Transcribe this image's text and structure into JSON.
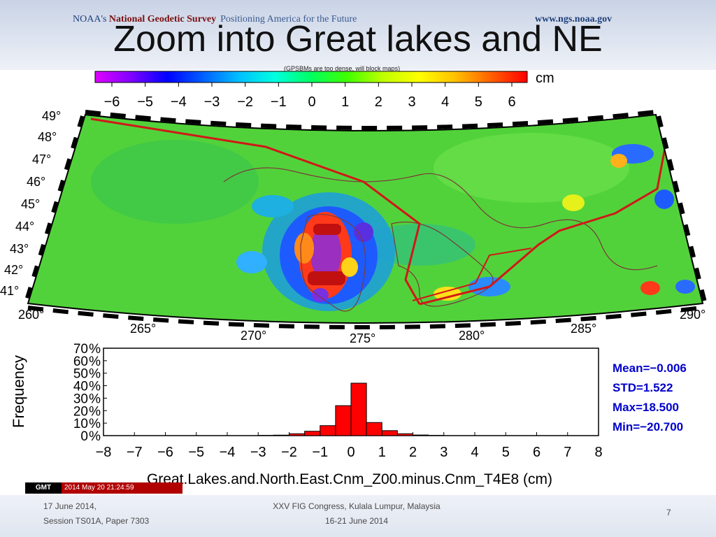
{
  "header": {
    "agency_prefix": "NOAA's ",
    "agency_name": "National Geodetic Survey",
    "motto": "Positioning America for the Future",
    "url": "www.ngs.noaa.gov"
  },
  "title": "Zoom into Great lakes and NE",
  "note": "(GPSBMs are too dense, will block maps)",
  "colorbar": {
    "unit": "cm",
    "ticks": [
      "−6",
      "−5",
      "−4",
      "−3",
      "−2",
      "−1",
      "0",
      "1",
      "2",
      "3",
      "4",
      "5",
      "6"
    ],
    "colors": [
      "#e000ff",
      "#8000ff",
      "#0000ff",
      "#0060ff",
      "#00c0ff",
      "#00ffe0",
      "#00ff60",
      "#40ff00",
      "#c0ff00",
      "#ffff00",
      "#ffc000",
      "#ff6000",
      "#ff0000"
    ]
  },
  "map": {
    "lat_labels": [
      "49°",
      "48°",
      "47°",
      "46°",
      "45°",
      "44°",
      "43°",
      "42°",
      "41°"
    ],
    "lon_labels": [
      "260°",
      "265°",
      "270°",
      "275°",
      "280°",
      "285°",
      "290°"
    ]
  },
  "chart_data": {
    "type": "bar",
    "ylabel": "Frequency",
    "xlabel": "Great.Lakes.and.North.East.Cnm_Z00.minus.Cnm_T4E8 (cm)",
    "xlim": [
      -8,
      8
    ],
    "ylim": [
      0,
      70
    ],
    "x_ticks": [
      "−8",
      "−7",
      "−6",
      "−5",
      "−4",
      "−3",
      "−2",
      "−1",
      "0",
      "1",
      "2",
      "3",
      "4",
      "5",
      "6",
      "7",
      "8"
    ],
    "y_ticks": [
      "0 %",
      "10 %",
      "20 %",
      "30 %",
      "40 %",
      "50 %",
      "60 %",
      "70 %"
    ],
    "bin_width": 0.5,
    "bins": [
      {
        "x0": -3.0,
        "value": 0.2
      },
      {
        "x0": -2.5,
        "value": 0.4
      },
      {
        "x0": -2.0,
        "value": 1.5
      },
      {
        "x0": -1.5,
        "value": 3.5
      },
      {
        "x0": -1.0,
        "value": 8.0
      },
      {
        "x0": -0.5,
        "value": 24.0
      },
      {
        "x0": 0.0,
        "value": 42.0
      },
      {
        "x0": 0.5,
        "value": 10.5
      },
      {
        "x0": 1.0,
        "value": 4.0
      },
      {
        "x0": 1.5,
        "value": 1.5
      },
      {
        "x0": 2.0,
        "value": 0.5
      },
      {
        "x0": 2.5,
        "value": 0.2
      }
    ],
    "bar_color": "#ff0000",
    "stats": [
      "Mean=−0.006",
      "STD=1.522",
      "Max=18.500",
      "Min=−20.700"
    ],
    "stats_color": "#0000cc"
  },
  "stamp": {
    "logo": "GMT",
    "timestamp": "2014 May 20 21:24:59"
  },
  "footer": {
    "date": "17 June 2014,",
    "session": "Session TS01A, Paper 7303",
    "congress": "XXV FIG Congress, Kulala Lumpur, Malaysia",
    "congress_dates": "16-21 June 2014",
    "page_number": "7"
  }
}
